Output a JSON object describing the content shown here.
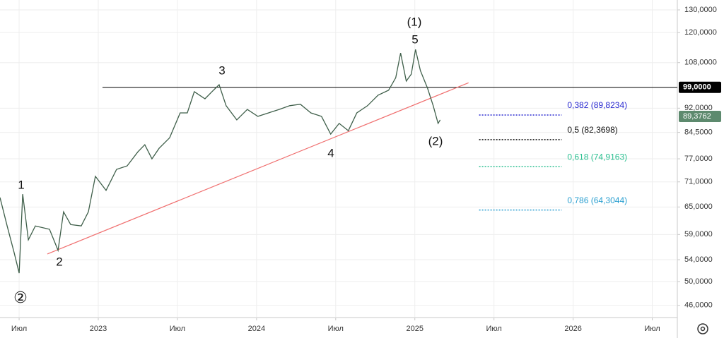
{
  "chart_data": {
    "type": "line",
    "log_scale": true,
    "grid": true,
    "series": [
      {
        "name": null,
        "color": "#3f5f4a",
        "x": [
          4.55,
          5.09,
          5.63,
          6.0,
          6.27,
          6.7,
          7.23,
          8.3,
          8.95,
          9.37,
          9.91,
          10.71,
          11.25,
          11.78,
          12.59,
          13.39,
          14.19,
          15.0,
          15.53,
          16.07,
          16.61,
          17.41,
          18.21,
          18.75,
          19.28,
          20.09,
          20.62,
          21.16,
          21.69,
          22.5,
          23.3,
          24.1,
          24.91,
          25.71,
          26.51,
          27.32,
          28.12,
          28.92,
          29.62,
          30.26,
          30.96,
          31.6,
          32.41,
          33.21,
          34.01,
          34.55,
          34.92,
          35.35,
          35.73,
          36.05,
          36.42,
          36.96,
          37.39,
          37.76,
          37.92
        ],
        "values": [
          67.2,
          60.8,
          55.3,
          51.5,
          68.0,
          57.9,
          60.8,
          60.1,
          55.8,
          63.9,
          61.1,
          60.8,
          63.9,
          72.4,
          68.9,
          74.2,
          75.1,
          78.9,
          80.9,
          77.0,
          79.9,
          82.9,
          90.5,
          90.5,
          97.5,
          95.1,
          97.5,
          99.9,
          92.8,
          88.3,
          91.6,
          89.4,
          90.5,
          91.6,
          92.8,
          93.3,
          90.5,
          89.4,
          84.0,
          87.2,
          85.0,
          90.5,
          92.8,
          96.3,
          98.0,
          102.4,
          111.7,
          101.2,
          103.7,
          113.1,
          105.0,
          98.7,
          92.8,
          87.2,
          88.3
        ]
      }
    ],
    "xlim": [
      4.55,
      55.9
    ],
    "xticks": [
      {
        "value": 6,
        "label": "Июл"
      },
      {
        "value": 12,
        "label": "2023"
      },
      {
        "value": 18,
        "label": "Июл"
      },
      {
        "value": 24,
        "label": "2024"
      },
      {
        "value": 30,
        "label": "Июл"
      },
      {
        "value": 36,
        "label": "2025"
      },
      {
        "value": 42,
        "label": "Июл"
      },
      {
        "value": 48,
        "label": "2026"
      },
      {
        "value": 54,
        "label": "Июл"
      }
    ],
    "ylim": [
      44.06,
      134.6
    ],
    "yticks": [
      {
        "value": 130,
        "label": "130,0000"
      },
      {
        "value": 120,
        "label": "120,0000"
      },
      {
        "value": 108,
        "label": "108,0000"
      },
      {
        "value": 92,
        "label": "92,0000"
      },
      {
        "value": 84.5,
        "label": "84,5000"
      },
      {
        "value": 77,
        "label": "77,0000"
      },
      {
        "value": 71,
        "label": "71,0000"
      },
      {
        "value": 65,
        "label": "65,0000"
      },
      {
        "value": 59,
        "label": "59,0000"
      },
      {
        "value": 54,
        "label": "54,0000"
      },
      {
        "value": 50,
        "label": "50,0000"
      },
      {
        "value": 46,
        "label": "46,0000"
      }
    ],
    "hline": {
      "value": 99,
      "label": "99,0000",
      "x_start": 12.32,
      "color": "#000000"
    },
    "last_price": {
      "value": 89.3762,
      "label": "89,3762",
      "color": "#5d8a6e"
    },
    "trendline": {
      "x": [
        8.14,
        40.07
      ],
      "values": [
        55.1,
        100.6
      ],
      "color": "#f07070"
    },
    "fib_x": [
      40.87,
      47.13
    ],
    "fib_levels": [
      {
        "label": "0,382 (89,8234)",
        "value": 89.8234,
        "color": "#2a2ad0"
      },
      {
        "label": "0,5 (82,3698)",
        "value": 82.3698,
        "color": "#111111"
      },
      {
        "label": "0,618 (74,9163)",
        "value": 74.9163,
        "color": "#2bbf90"
      },
      {
        "label": "0,786 (64,3044)",
        "value": 64.3044,
        "color": "#2a9fd0"
      }
    ],
    "annotations": [
      "1",
      "2",
      "3",
      "4",
      "5",
      "(1)",
      "(2)",
      "②"
    ]
  }
}
